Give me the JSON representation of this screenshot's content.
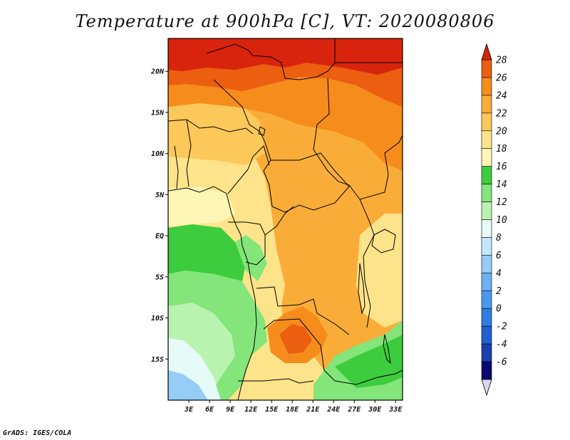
{
  "title": "Temperature at 900hPa [C], VT: 2020080806",
  "credit": "GrADS: IGES/COLA",
  "map": {
    "lon_range": [
      0,
      34
    ],
    "lat_range": [
      -20,
      24
    ],
    "lon_ticks": [
      {
        "value": 3,
        "label": "3E"
      },
      {
        "value": 6,
        "label": "6E"
      },
      {
        "value": 9,
        "label": "9E"
      },
      {
        "value": 12,
        "label": "12E"
      },
      {
        "value": 15,
        "label": "15E"
      },
      {
        "value": 18,
        "label": "18E"
      },
      {
        "value": 21,
        "label": "21E"
      },
      {
        "value": 24,
        "label": "24E"
      },
      {
        "value": 27,
        "label": "27E"
      },
      {
        "value": 30,
        "label": "30E"
      },
      {
        "value": 33,
        "label": "33E"
      }
    ],
    "lat_ticks": [
      {
        "value": 20,
        "label": "20N"
      },
      {
        "value": 15,
        "label": "15N"
      },
      {
        "value": 10,
        "label": "10N"
      },
      {
        "value": 5,
        "label": "5N"
      },
      {
        "value": 0,
        "label": "EQ"
      },
      {
        "value": -5,
        "label": "5S"
      },
      {
        "value": -10,
        "label": "10S"
      },
      {
        "value": -15,
        "label": "15S"
      }
    ]
  },
  "colorbar": {
    "labels": [
      "-6",
      "-4",
      "-2",
      "0",
      "2",
      "4",
      "6",
      "8",
      "10",
      "12",
      "14",
      "16",
      "18",
      "20",
      "22",
      "24",
      "26",
      "28"
    ],
    "colors": [
      "#d8d8f0",
      "#0a0a6e",
      "#1a3fb0",
      "#2060d0",
      "#2f7de0",
      "#4a98ec",
      "#6cb2f2",
      "#96cdf7",
      "#c4e8fb",
      "#e6faf8",
      "#b9f3b0",
      "#83e57a",
      "#3dcc3d",
      "#fef6b4",
      "#fde38a",
      "#fcc85a",
      "#f9ad38",
      "#f58c1c",
      "#ec5e10",
      "#d8240c"
    ]
  }
}
